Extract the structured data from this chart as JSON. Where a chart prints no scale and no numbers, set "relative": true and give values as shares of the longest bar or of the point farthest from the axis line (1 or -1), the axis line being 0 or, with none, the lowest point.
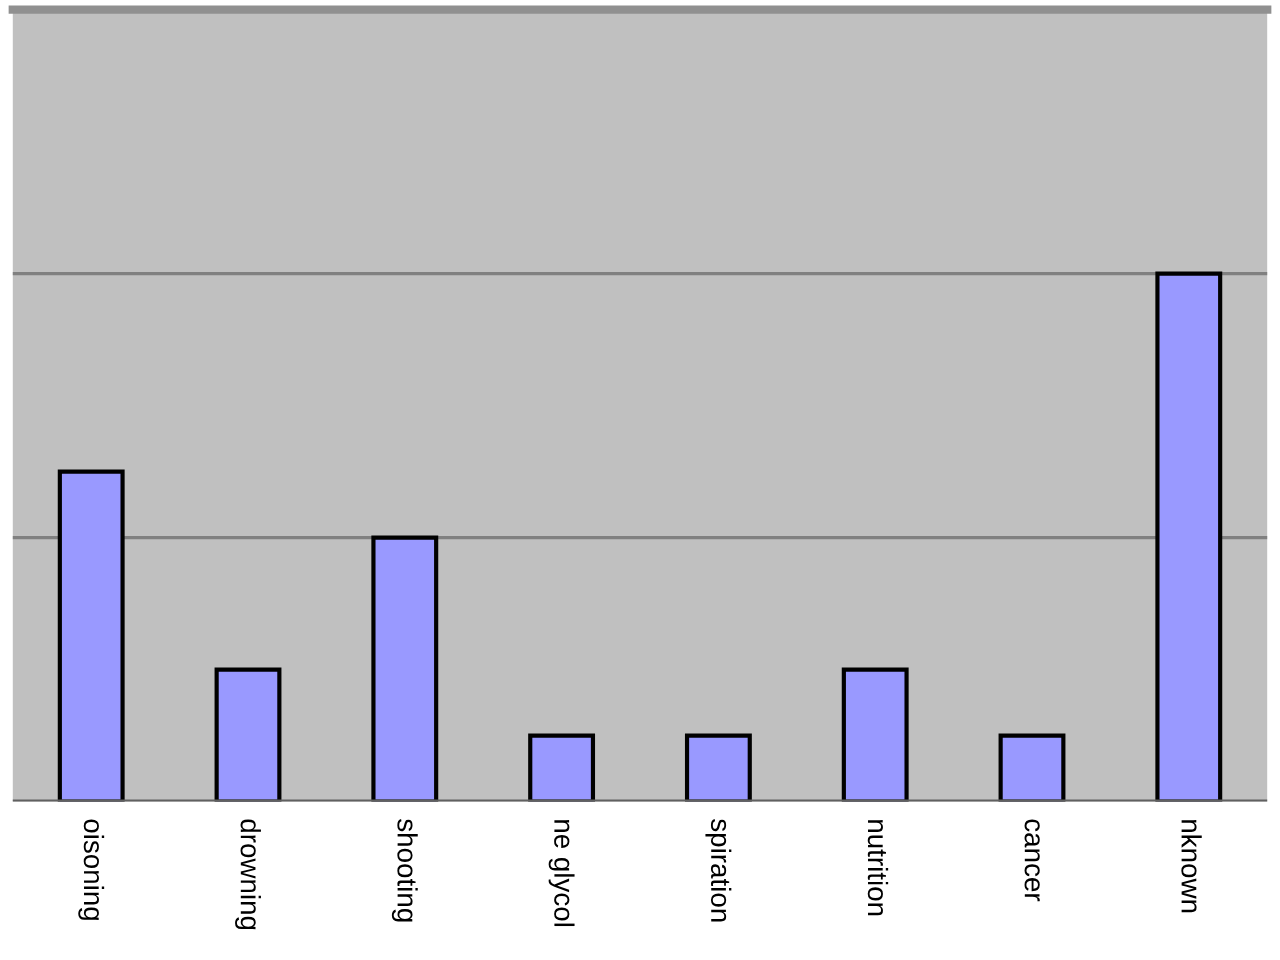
{
  "chart_data": {
    "type": "bar",
    "relative": true,
    "categories": [
      "oisoning",
      "drowning",
      "shooting",
      "ne glycol",
      "spiration",
      "nutrition",
      "cancer",
      "nknown"
    ],
    "values": [
      0.625,
      0.25,
      0.5,
      0.125,
      0.125,
      0.25,
      0.125,
      1
    ],
    "color": "#9999ff",
    "legend": false,
    "ref_lines": [
      {
        "axis": "y",
        "value": 0.5,
        "color": "#808080"
      },
      {
        "axis": "y",
        "value": 1,
        "color": "#808080"
      }
    ]
  }
}
